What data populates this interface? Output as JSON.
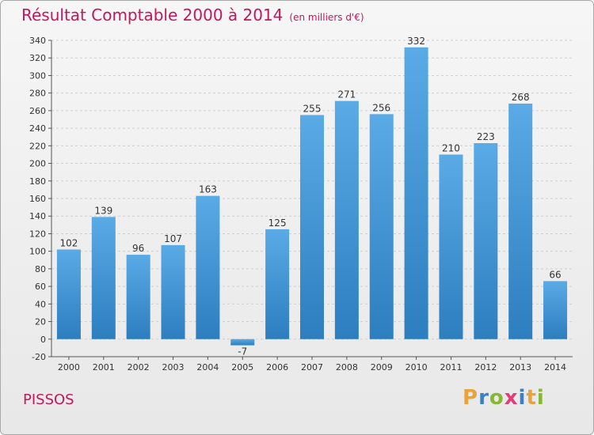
{
  "title": {
    "main": "Résultat Comptable 2000 à 2014",
    "unit": "(en milliers d'€)"
  },
  "place": "PISSOS",
  "logo": {
    "text": "Proxiti",
    "letters": [
      {
        "ch": "P",
        "color": "#e8a33b"
      },
      {
        "ch": "r",
        "color": "#3d7fc4"
      },
      {
        "ch": "o",
        "color": "#88b832"
      },
      {
        "ch": "x",
        "color": "#e23d7b"
      },
      {
        "ch": "i",
        "color": "#3d7fc4"
      },
      {
        "ch": "t",
        "color": "#e8a33b"
      },
      {
        "ch": "i",
        "color": "#88b832"
      }
    ]
  },
  "colors": {
    "bar_top": "#5aaae6",
    "bar_bottom": "#2d7ebf",
    "grid": "#cfcfcf",
    "title": "#c2185b"
  },
  "chart_data": {
    "type": "bar",
    "categories": [
      "2000",
      "2001",
      "2002",
      "2003",
      "2004",
      "2005",
      "2006",
      "2007",
      "2008",
      "2009",
      "2010",
      "2011",
      "2012",
      "2013",
      "2014"
    ],
    "values": [
      102,
      139,
      96,
      107,
      163,
      -7,
      125,
      255,
      271,
      256,
      332,
      210,
      223,
      268,
      66
    ],
    "title": "Résultat Comptable 2000 à 2014",
    "xlabel": "",
    "ylabel": "",
    "ylim": [
      -20,
      340
    ],
    "yticks": [
      -20,
      0,
      20,
      40,
      60,
      80,
      100,
      120,
      140,
      160,
      180,
      200,
      220,
      240,
      260,
      280,
      300,
      320,
      340
    ],
    "grid": true
  }
}
